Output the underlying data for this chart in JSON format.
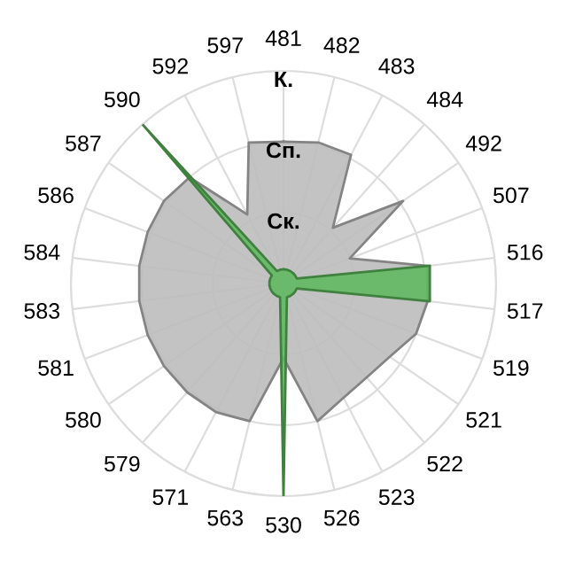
{
  "chart_data": {
    "type": "radar",
    "categories": [
      "481",
      "482",
      "483",
      "484",
      "492",
      "507",
      "516",
      "517",
      "519",
      "521",
      "522",
      "523",
      "526",
      "530",
      "563",
      "571",
      "579",
      "580",
      "581",
      "583",
      "584",
      "586",
      "587",
      "590",
      "592",
      "597"
    ],
    "series": [
      {
        "color": "#bcbcbc",
        "values": [
          2.0,
          2.05,
          2.05,
          1.05,
          2.05,
          1.0,
          2.05,
          2.05,
          2.0,
          1.82,
          1.77,
          1.82,
          2.0,
          1.05,
          2.0,
          2.05,
          2.05,
          2.05,
          2.05,
          2.05,
          2.05,
          2.05,
          2.05,
          2.0,
          1.1,
          2.05
        ]
      },
      {
        "color": "#5cb85c",
        "values": [
          0.2,
          0.2,
          0.2,
          0.2,
          0.2,
          0.2,
          2.08,
          2.08,
          0.2,
          0.2,
          0.2,
          0.2,
          0.2,
          3,
          0.2,
          0.2,
          0.2,
          0.2,
          0.2,
          0.2,
          0.2,
          0.2,
          0.2,
          3,
          0.2,
          0.2
        ]
      }
    ],
    "ylim": [
      0,
      3
    ],
    "yticks": [
      {
        "value": 1,
        "label": "Ск."
      },
      {
        "value": 2,
        "label": "Сп."
      },
      {
        "value": 3,
        "label": "К."
      }
    ],
    "grid": true
  }
}
